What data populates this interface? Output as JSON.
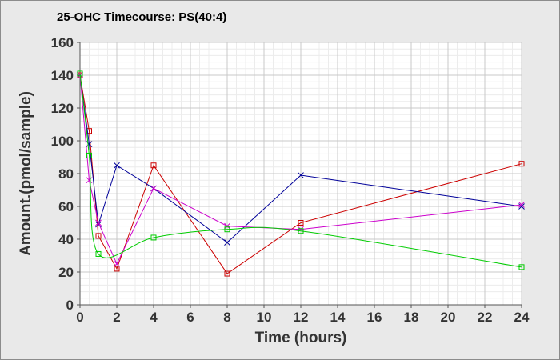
{
  "chart_data": {
    "type": "line",
    "title": "25-OHC Timecourse: PS(40:4)",
    "xlabel": "Time (hours)",
    "ylabel": "Amount.(pmol/sample)",
    "xlim": [
      0,
      24
    ],
    "ylim": [
      0,
      160
    ],
    "x_ticks": [
      0,
      2,
      4,
      6,
      8,
      10,
      12,
      14,
      16,
      18,
      20,
      22,
      24
    ],
    "y_ticks": [
      0,
      20,
      40,
      60,
      80,
      100,
      120,
      140,
      160
    ],
    "grid": true,
    "legend": "none",
    "series": [
      {
        "color": "#cc0000",
        "marker": "square",
        "smooth": false,
        "x": [
          0,
          0.5,
          1,
          2,
          4,
          8,
          12,
          24
        ],
        "y": [
          140,
          106,
          42,
          22,
          85,
          19,
          50,
          86
        ]
      },
      {
        "color": "#000099",
        "marker": "x",
        "smooth": false,
        "x": [
          0,
          0.5,
          1,
          2,
          4,
          8,
          12,
          24
        ],
        "y": [
          140,
          98,
          49,
          85,
          71,
          38,
          79,
          60
        ]
      },
      {
        "color": "#cc00cc",
        "marker": "x",
        "smooth": false,
        "x": [
          0,
          0.5,
          1,
          2,
          4,
          8,
          12,
          24
        ],
        "y": [
          140,
          76,
          50,
          25,
          71,
          48,
          46,
          61
        ]
      },
      {
        "color": "#00cc00",
        "marker": "square",
        "smooth": true,
        "x": [
          0,
          0.5,
          1,
          4,
          8,
          12,
          24
        ],
        "y": [
          141,
          91,
          31,
          41,
          46,
          45,
          23
        ]
      }
    ]
  }
}
